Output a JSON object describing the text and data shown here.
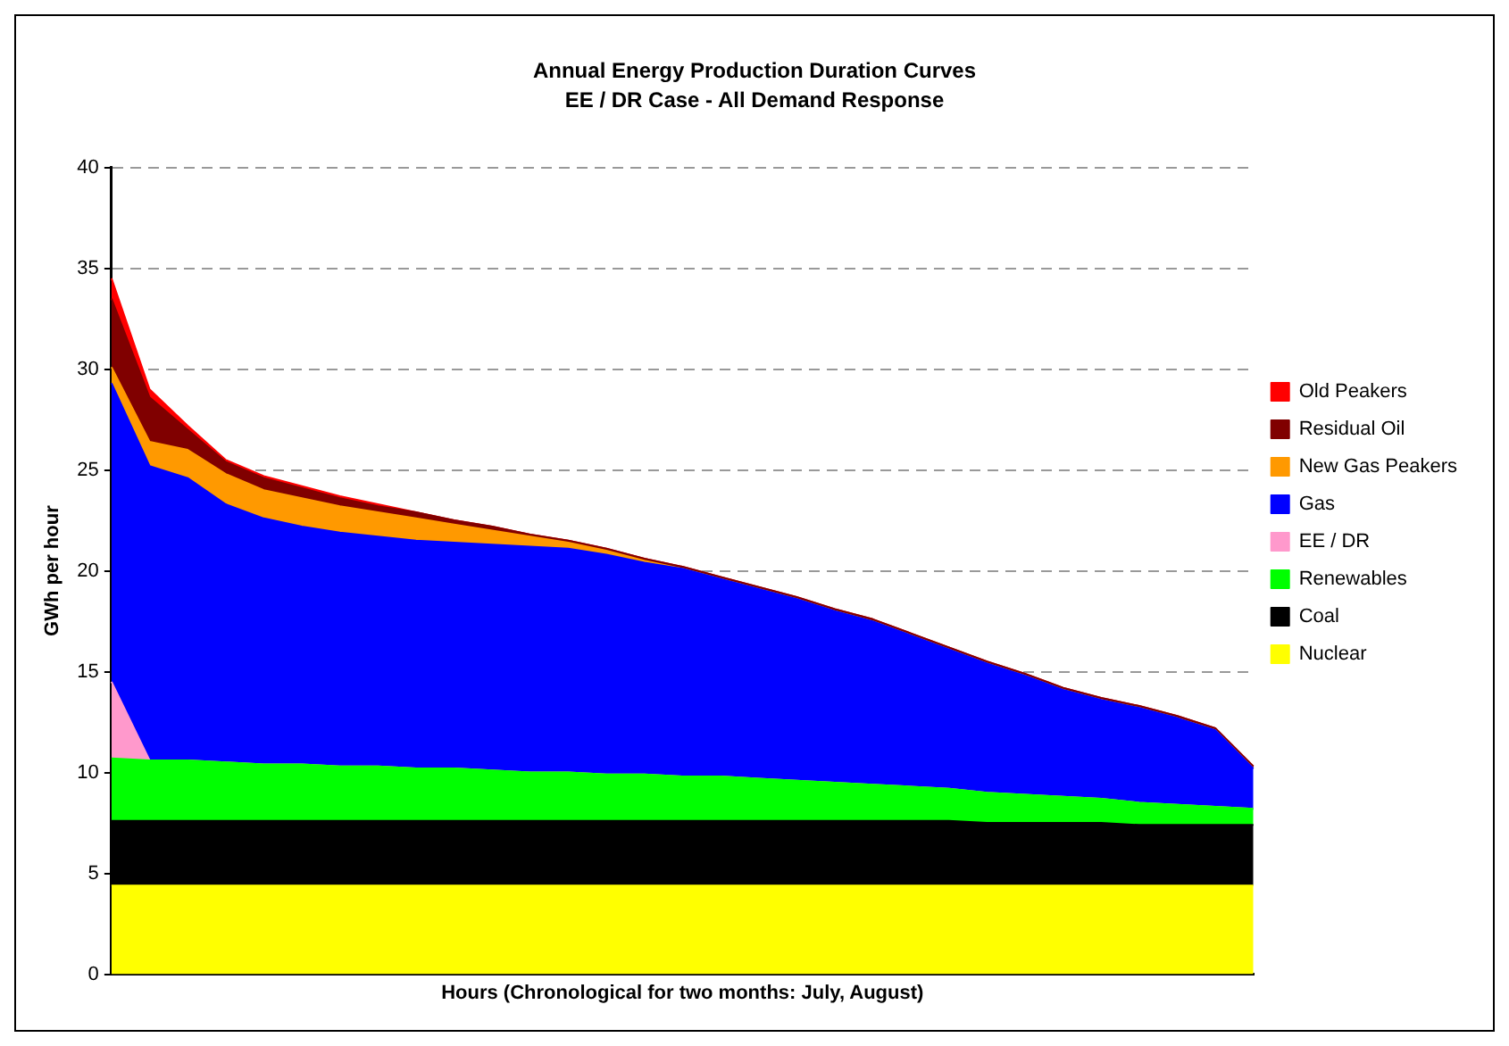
{
  "chart_data": {
    "type": "area",
    "title": "Annual Energy Production Duration Curves",
    "subtitle": "EE / DR Case - All Demand Response",
    "xlabel": "Hours (Chronological for two months: July, August)",
    "ylabel": "GWh per hour",
    "categories": [
      null,
      null,
      null,
      null,
      null,
      null,
      null,
      null,
      null,
      null,
      null,
      null,
      null,
      null,
      null,
      null,
      null,
      null,
      null,
      null,
      null,
      null,
      null,
      null,
      null,
      null,
      null,
      null,
      null,
      null,
      null
    ],
    "stacked": true,
    "ylim": [
      0,
      40
    ],
    "yticks": [
      0,
      5,
      10,
      15,
      20,
      25,
      30,
      35,
      40
    ],
    "grid": "y",
    "legend": "right",
    "tick_labels": "y",
    "series": [
      {
        "name": "Nuclear",
        "color": "#ffff00",
        "values": [
          4.4,
          4.4,
          4.4,
          4.4,
          4.4,
          4.4,
          4.4,
          4.4,
          4.4,
          4.4,
          4.4,
          4.4,
          4.4,
          4.4,
          4.4,
          4.4,
          4.4,
          4.4,
          4.4,
          4.4,
          4.4,
          4.4,
          4.4,
          4.4,
          4.4,
          4.4,
          4.4,
          4.4,
          4.4,
          4.4,
          4.4
        ]
      },
      {
        "name": "Coal",
        "color": "#000000",
        "values": [
          3.2,
          3.2,
          3.2,
          3.2,
          3.2,
          3.2,
          3.2,
          3.2,
          3.2,
          3.2,
          3.2,
          3.2,
          3.2,
          3.2,
          3.2,
          3.2,
          3.2,
          3.2,
          3.2,
          3.2,
          3.2,
          3.2,
          3.2,
          3.1,
          3.1,
          3.1,
          3.1,
          3.0,
          3.0,
          3.0,
          3.0
        ]
      },
      {
        "name": "Renewables",
        "color": "#00ff00",
        "values": [
          3.1,
          3.0,
          3.0,
          2.9,
          2.8,
          2.8,
          2.7,
          2.7,
          2.6,
          2.6,
          2.5,
          2.4,
          2.4,
          2.3,
          2.3,
          2.2,
          2.2,
          2.1,
          2.0,
          1.9,
          1.8,
          1.7,
          1.6,
          1.5,
          1.4,
          1.3,
          1.2,
          1.1,
          1.0,
          0.9,
          0.8
        ]
      },
      {
        "name": "EE / DR",
        "color": "#ff99cc",
        "values": [
          3.8,
          0,
          0,
          0,
          0,
          0,
          0,
          0,
          0,
          0,
          0,
          0,
          0,
          0,
          0,
          0,
          0,
          0,
          0,
          0,
          0,
          0,
          0,
          0,
          0,
          0,
          0,
          0,
          0,
          0,
          0
        ]
      },
      {
        "name": "Gas",
        "color": "#0000ff",
        "values": [
          14.8,
          14.6,
          14.0,
          12.8,
          12.2,
          11.8,
          11.6,
          11.4,
          11.3,
          11.2,
          11.2,
          11.2,
          11.1,
          10.9,
          10.5,
          10.3,
          9.8,
          9.4,
          9.0,
          8.5,
          8.1,
          7.5,
          6.9,
          6.4,
          5.9,
          5.3,
          4.9,
          4.7,
          4.3,
          3.8,
          2.0
        ]
      },
      {
        "name": "New Gas Peakers",
        "color": "#ff9900",
        "values": [
          0.8,
          1.2,
          1.4,
          1.5,
          1.4,
          1.4,
          1.3,
          1.2,
          1.1,
          0.9,
          0.7,
          0.5,
          0.3,
          0.2,
          0.1,
          0,
          0,
          0,
          0,
          0,
          0,
          0,
          0,
          0,
          0,
          0,
          0,
          0,
          0,
          0,
          0
        ]
      },
      {
        "name": "Residual Oil",
        "color": "#800000",
        "values": [
          3.4,
          2.2,
          1.0,
          0.6,
          0.6,
          0.5,
          0.4,
          0.3,
          0.3,
          0.2,
          0.2,
          0.1,
          0.1,
          0.1,
          0.1,
          0.1,
          0.1,
          0.1,
          0.1,
          0.1,
          0.1,
          0.1,
          0.1,
          0.1,
          0.1,
          0.1,
          0.1,
          0.1,
          0.1,
          0.1,
          0.1
        ]
      },
      {
        "name": "Old Peakers",
        "color": "#ff0000",
        "values": [
          1.0,
          0.4,
          0.2,
          0.1,
          0.1,
          0.1,
          0.1,
          0.1,
          0,
          0,
          0,
          0,
          0,
          0,
          0,
          0,
          0,
          0,
          0,
          0,
          0,
          0,
          0,
          0,
          0,
          0,
          0,
          0,
          0,
          0,
          0
        ]
      }
    ]
  }
}
